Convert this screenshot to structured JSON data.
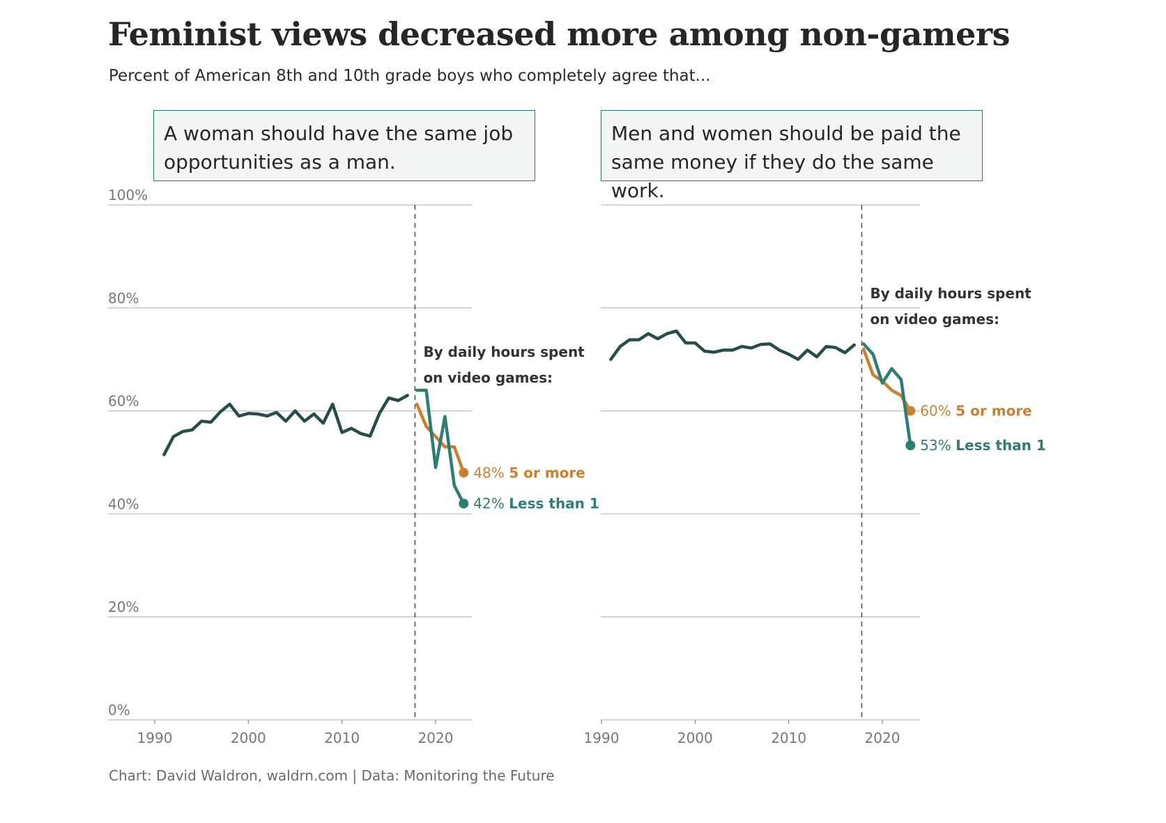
{
  "title": "Feminist views decreased more among non-gamers",
  "subtitle": "Percent of American 8th and 10th grade boys who completely agree that...",
  "source": "Chart: David Waldron, waldrn.com | Data: Monitoring the Future",
  "colors": {
    "overall": "#274d49",
    "five_or_more": "#c98131",
    "less_than_1": "#2e7d72",
    "grid": "#c8c8c8",
    "divider": "#555555",
    "box_border": "#2e7a72"
  },
  "chart_data": [
    {
      "type": "line",
      "panel_title": "A woman should have the same job opportunities as a man.",
      "annotation": [
        "By daily hours spent",
        "on video games:"
      ],
      "y_ticks": [
        "0%",
        "20%",
        "40%",
        "60%",
        "80%",
        "100%"
      ],
      "x_ticks": [
        "1990",
        "2000",
        "2010",
        "2020"
      ],
      "xlim": [
        1985,
        2024
      ],
      "ylim": [
        0,
        100
      ],
      "split_year": 2017.8,
      "series": [
        {
          "key": "overall",
          "x": [
            1991,
            1992,
            1993,
            1994,
            1995,
            1996,
            1997,
            1998,
            1999,
            2000,
            2001,
            2002,
            2003,
            2004,
            2005,
            2006,
            2007,
            2008,
            2009,
            2010,
            2011,
            2012,
            2013,
            2014,
            2015,
            2016,
            2017
          ],
          "y": [
            51.5,
            55.0,
            56.0,
            56.3,
            58.0,
            57.8,
            59.8,
            61.3,
            59.0,
            59.5,
            59.4,
            59.0,
            59.7,
            58.0,
            60.0,
            58.0,
            59.4,
            57.6,
            61.3,
            55.8,
            56.6,
            55.6,
            55.1,
            59.5,
            62.5,
            62.0,
            63.0
          ]
        },
        {
          "key": "five_or_more",
          "name": "5 or more",
          "end_label": "48%",
          "x": [
            2018,
            2019,
            2020,
            2021,
            2022,
            2023
          ],
          "y": [
            61.3,
            57.0,
            55.0,
            53.0,
            53.0,
            48.0
          ]
        },
        {
          "key": "less_than_1",
          "name": "Less than 1",
          "end_label": "42%",
          "x": [
            2018,
            2019,
            2020,
            2021,
            2022,
            2023
          ],
          "y": [
            64.0,
            64.0,
            49.0,
            58.9,
            45.5,
            42.0
          ]
        }
      ]
    },
    {
      "type": "line",
      "panel_title": "Men and women should be paid the same money if they do the same work.",
      "annotation": [
        "By daily hours spent",
        "on video games:"
      ],
      "y_ticks": [
        "0%",
        "20%",
        "40%",
        "60%",
        "80%",
        "100%"
      ],
      "x_ticks": [
        "1990",
        "2000",
        "2010",
        "2020"
      ],
      "xlim": [
        1990,
        2024
      ],
      "ylim": [
        0,
        100
      ],
      "split_year": 2017.8,
      "series": [
        {
          "key": "overall",
          "x": [
            1991,
            1992,
            1993,
            1994,
            1995,
            1996,
            1997,
            1998,
            1999,
            2000,
            2001,
            2002,
            2003,
            2004,
            2005,
            2006,
            2007,
            2008,
            2009,
            2010,
            2011,
            2012,
            2013,
            2014,
            2015,
            2016,
            2017
          ],
          "y": [
            70.0,
            72.5,
            73.8,
            73.8,
            75.0,
            74.0,
            75.0,
            75.5,
            73.2,
            73.2,
            71.6,
            71.4,
            71.8,
            71.8,
            72.5,
            72.2,
            72.9,
            73.0,
            71.8,
            71.0,
            70.0,
            71.8,
            70.5,
            72.5,
            72.3,
            71.3,
            72.8
          ],
          "show_y_tick_labels": false
        },
        {
          "key": "five_or_more",
          "name": "5 or more",
          "end_label": "60%",
          "x": [
            2018,
            2019,
            2020,
            2021,
            2022,
            2023
          ],
          "y": [
            72.0,
            67.0,
            65.8,
            64.0,
            63.0,
            60.0
          ]
        },
        {
          "key": "less_than_1",
          "name": "Less than 1",
          "end_label": "53%",
          "x": [
            2018,
            2019,
            2020,
            2021,
            2022,
            2023
          ],
          "y": [
            73.0,
            71.0,
            65.4,
            68.2,
            66.1,
            53.3
          ]
        }
      ]
    }
  ]
}
